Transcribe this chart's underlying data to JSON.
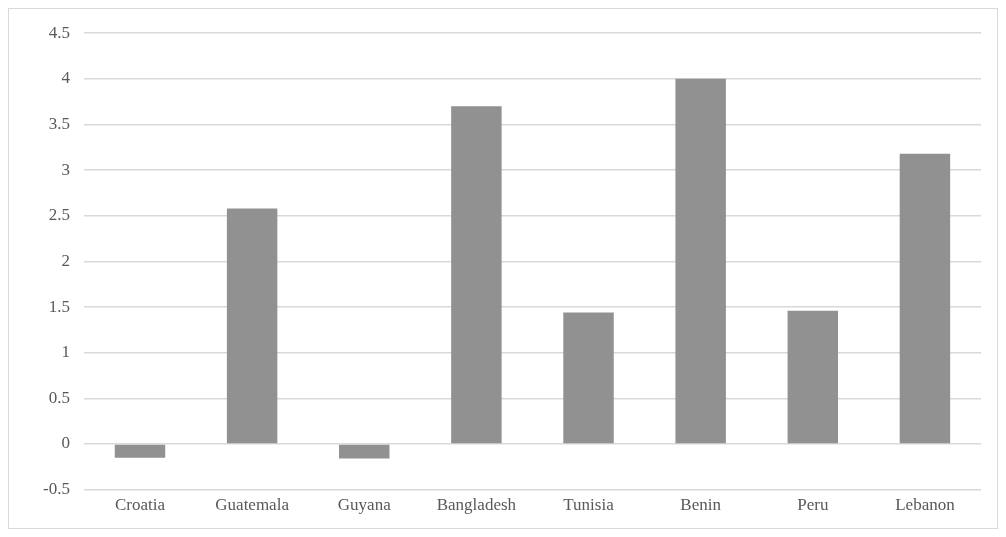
{
  "chart_data": {
    "type": "bar",
    "categories": [
      "Croatia",
      "Guatemala",
      "Guyana",
      "Bangladesh",
      "Tunisia",
      "Benin",
      "Peru",
      "Lebanon"
    ],
    "values": [
      -0.15,
      2.58,
      -0.16,
      3.7,
      1.44,
      4.0,
      1.46,
      3.18
    ],
    "color": "#919191",
    "ylim": [
      -0.5,
      4.5
    ],
    "yticks": [
      -0.5,
      0,
      0.5,
      1,
      1.5,
      2,
      2.5,
      3,
      3.5,
      4,
      4.5
    ],
    "grid": "y",
    "legend": false
  }
}
